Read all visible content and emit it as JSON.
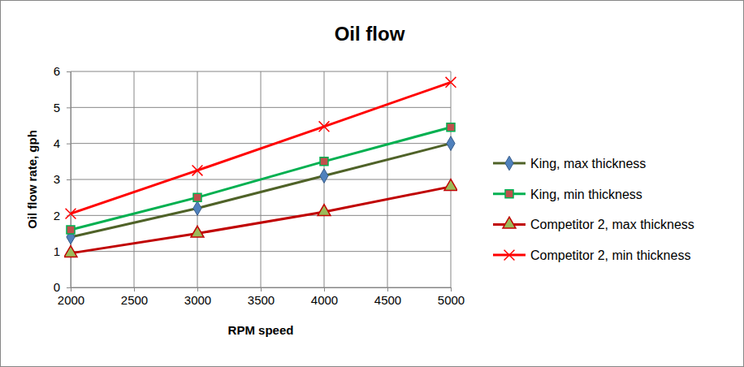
{
  "chart_data": {
    "type": "line",
    "title": "Oil flow",
    "x_label": "RPM speed",
    "y_label": "Oil flow rate, gph",
    "x": [
      2000,
      3000,
      4000,
      5000
    ],
    "series": [
      {
        "name": "King, max thickness",
        "color": "#4f6228",
        "marker": "diamond",
        "values": [
          1.4,
          2.2,
          3.1,
          4.0
        ]
      },
      {
        "name": "King, min thickness",
        "color": "#00b050",
        "marker": "square",
        "values": [
          1.6,
          2.5,
          3.5,
          4.45
        ]
      },
      {
        "name": "Competitor 2, max thickness",
        "color": "#c00000",
        "marker": "triangle",
        "values": [
          0.95,
          1.5,
          2.1,
          2.8
        ]
      },
      {
        "name": "Competitor 2, min thickness",
        "color": "#ff0000",
        "marker": "x",
        "values": [
          2.05,
          3.25,
          4.47,
          5.7
        ]
      }
    ],
    "xlim": [
      2000,
      5000
    ],
    "xticks": [
      2000,
      2500,
      3000,
      3500,
      4000,
      4500,
      5000
    ],
    "ylim": [
      0,
      6
    ],
    "yticks": [
      0,
      1,
      2,
      3,
      4,
      5,
      6
    ],
    "grid": true,
    "legend": "right"
  }
}
